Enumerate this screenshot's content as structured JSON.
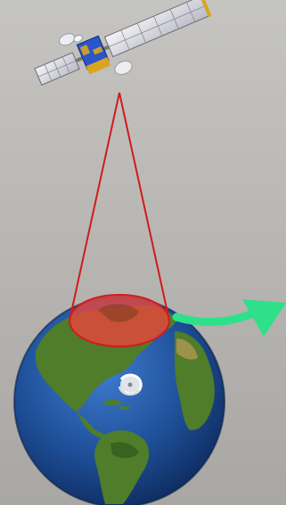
{
  "diagram": {
    "elements": [
      {
        "name": "satellite",
        "icon": "satellite-icon"
      },
      {
        "name": "satellite-field-of-view",
        "icon": "cone-icon"
      },
      {
        "name": "coverage-footprint",
        "icon": "ellipse-icon"
      },
      {
        "name": "earth-globe",
        "icon": "globe-icon"
      },
      {
        "name": "hurricane",
        "icon": "storm-icon"
      },
      {
        "name": "orbit-direction-arrow",
        "icon": "curved-arrow-icon"
      }
    ],
    "colors": {
      "background_top": "#c5c4c1",
      "background_bottom": "#a9a7a3",
      "beam_line": "#d11b1b",
      "footprint_fill": "#e8453c",
      "ocean": "#1d4e96",
      "land": "#4f7d2a",
      "arrow": "#2ee089",
      "solar_panel": "#e3e3ea",
      "satellite_body": "#2b56c9",
      "satellite_gold": "#d9a521"
    }
  }
}
